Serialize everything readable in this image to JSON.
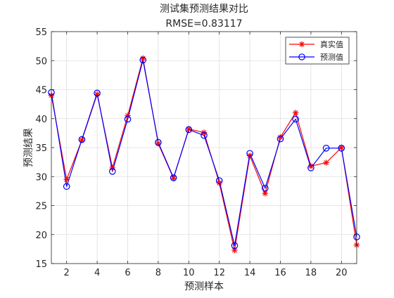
{
  "chart_data": {
    "type": "line",
    "title": "测试集预测结果对比",
    "subtitle": "RMSE=0.83117",
    "xlabel": "预测样本",
    "ylabel": "预测结果",
    "xlim": [
      1,
      21
    ],
    "ylim": [
      15,
      55
    ],
    "xticks": [
      2,
      4,
      6,
      8,
      10,
      12,
      14,
      16,
      18,
      20
    ],
    "yticks": [
      15,
      20,
      25,
      30,
      35,
      40,
      45,
      50,
      55
    ],
    "grid": true,
    "legend_position": "top-right",
    "x": [
      1,
      2,
      3,
      4,
      5,
      6,
      7,
      8,
      9,
      10,
      11,
      12,
      13,
      14,
      15,
      16,
      17,
      18,
      19,
      20,
      21
    ],
    "series": [
      {
        "name": "真实值",
        "color": "#ff0000",
        "marker": "asterisk",
        "values": [
          44.0,
          29.5,
          36.3,
          44.2,
          31.5,
          40.5,
          50.4,
          35.7,
          29.7,
          38.2,
          37.6,
          28.9,
          17.3,
          33.6,
          27.1,
          36.8,
          41.0,
          31.8,
          32.4,
          35.0,
          18.2
        ]
      },
      {
        "name": "预测值",
        "color": "#0000ff",
        "marker": "circle",
        "values": [
          44.5,
          28.3,
          36.4,
          44.4,
          30.9,
          39.9,
          50.1,
          35.9,
          29.8,
          38.1,
          37.1,
          29.3,
          18.1,
          34.0,
          28.0,
          36.5,
          39.9,
          31.5,
          34.9,
          34.9,
          19.6
        ]
      }
    ]
  }
}
